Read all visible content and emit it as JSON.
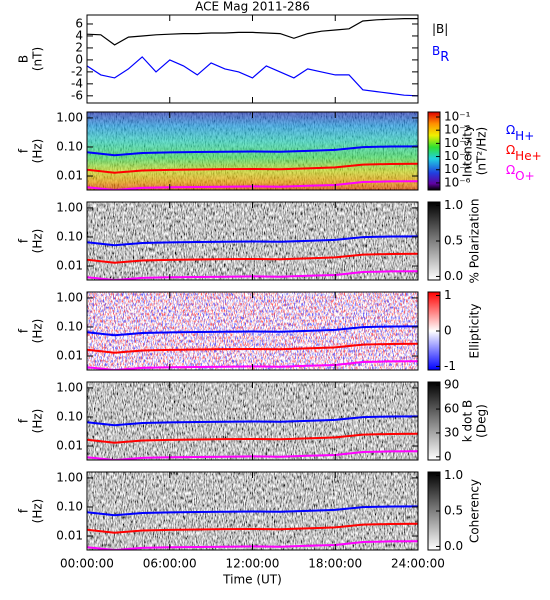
{
  "chart_data": [
    {
      "type": "line",
      "title": "ACE Mag 2011-286",
      "ylabel": [
        "B",
        "(nT)"
      ],
      "x": [
        0,
        1,
        2,
        3,
        4,
        5,
        6,
        7,
        8,
        9,
        10,
        11,
        12,
        13,
        14,
        15,
        16,
        17,
        18,
        19,
        20,
        21,
        22,
        23,
        24
      ],
      "xlim": [
        0,
        24
      ],
      "ylim": [
        -7.2,
        7.5
      ],
      "yticks": [
        -6,
        -4,
        -2,
        0,
        2,
        4,
        6
      ],
      "series": [
        {
          "name": "|B|",
          "color": "#000000",
          "values": [
            4.3,
            4.2,
            2.5,
            3.8,
            4.0,
            4.2,
            4.3,
            4.4,
            4.4,
            4.5,
            4.5,
            4.6,
            4.6,
            4.5,
            4.4,
            3.6,
            4.4,
            4.8,
            5.0,
            5.2,
            6.5,
            6.7,
            6.8,
            6.9,
            6.9
          ]
        },
        {
          "name": "B",
          "sub": "R",
          "color": "#0000ff",
          "values": [
            -1.0,
            -2.5,
            -3.0,
            -1.5,
            0.5,
            -2.0,
            0.0,
            -1.0,
            -2.5,
            -0.5,
            -1.5,
            -2.0,
            -3.0,
            -1.0,
            -2.0,
            -3.0,
            -1.5,
            -2.0,
            -2.5,
            -2.5,
            -5.0,
            -5.3,
            -5.6,
            -5.9,
            -6.0
          ]
        }
      ]
    },
    {
      "type": "spectrogram",
      "ylabel": [
        "f",
        "(Hz)"
      ],
      "log_y": true,
      "x": [
        0,
        2,
        4,
        6,
        8,
        10,
        12,
        14,
        16,
        18,
        20,
        22,
        24
      ],
      "xlim": [
        0,
        24
      ],
      "ylim": [
        0.0033,
        1.6
      ],
      "yticks": [
        {
          "value": 1,
          "label": "1.00"
        },
        {
          "value": 0.1,
          "label": "0.10"
        },
        {
          "value": 0.01,
          "label": "0.01"
        }
      ],
      "colormap": "rainbow",
      "colorbar": {
        "label": [
          "Intensity",
          "(nT²/Hz)"
        ],
        "log": true,
        "lim": [
          2.9e-07,
          0.24
        ],
        "ticks": [
          {
            "value": 0.1,
            "label": "10⁻¹"
          },
          {
            "value": 0.01,
            "label": "10⁻²"
          },
          {
            "value": 0.001,
            "label": "10⁻³"
          },
          {
            "value": 0.0001,
            "label": "10⁻⁴"
          },
          {
            "value": 1e-05,
            "label": "10⁻⁵"
          },
          {
            "value": 1e-06,
            "label": "10⁻⁶"
          }
        ]
      },
      "series": [
        {
          "name": "Ω",
          "sub": "H+",
          "color": "#0000ff",
          "values": [
            0.066,
            0.052,
            0.062,
            0.065,
            0.067,
            0.069,
            0.07,
            0.068,
            0.073,
            0.079,
            0.099,
            0.104,
            0.105
          ]
        },
        {
          "name": "Ω",
          "sub": "He+",
          "color": "#ff0000",
          "values": [
            0.0165,
            0.013,
            0.0155,
            0.0163,
            0.0168,
            0.0173,
            0.0175,
            0.017,
            0.0183,
            0.0198,
            0.0248,
            0.026,
            0.0263
          ]
        },
        {
          "name": "Ω",
          "sub": "O+",
          "color": "#ff00ff",
          "values": [
            0.0041,
            0.0033,
            0.0039,
            0.0041,
            0.0042,
            0.0043,
            0.0044,
            0.0043,
            0.0046,
            0.0049,
            0.0062,
            0.0065,
            0.0066
          ]
        }
      ]
    },
    {
      "type": "spectrogram",
      "ylabel": [
        "f",
        "(Hz)"
      ],
      "log_y": true,
      "x": [
        0,
        2,
        4,
        6,
        8,
        10,
        12,
        14,
        16,
        18,
        20,
        22,
        24
      ],
      "xlim": [
        0,
        24
      ],
      "ylim": [
        0.0033,
        1.6
      ],
      "yticks": [
        {
          "value": 1,
          "label": "1.00"
        },
        {
          "value": 0.1,
          "label": "0.10"
        },
        {
          "value": 0.01,
          "label": "0.01"
        }
      ],
      "colormap": "gray",
      "colorbar": {
        "label": [
          "% Polarization"
        ],
        "lim": [
          -0.05,
          1.05
        ],
        "ticks": [
          {
            "value": 1,
            "label": "1.0"
          },
          {
            "value": 0.5,
            "label": "0.5"
          },
          {
            "value": 0,
            "label": "0.0"
          }
        ]
      },
      "series": [
        {
          "color": "#0000ff",
          "values": [
            0.066,
            0.052,
            0.062,
            0.065,
            0.067,
            0.069,
            0.07,
            0.068,
            0.073,
            0.079,
            0.099,
            0.104,
            0.105
          ]
        },
        {
          "color": "#ff0000",
          "values": [
            0.0165,
            0.013,
            0.0155,
            0.0163,
            0.0168,
            0.0173,
            0.0175,
            0.017,
            0.0183,
            0.0198,
            0.0248,
            0.026,
            0.0263
          ]
        },
        {
          "color": "#ff00ff",
          "values": [
            0.0041,
            0.0033,
            0.0039,
            0.0041,
            0.0042,
            0.0043,
            0.0044,
            0.0043,
            0.0046,
            0.0049,
            0.0062,
            0.0065,
            0.0066
          ]
        }
      ]
    },
    {
      "type": "spectrogram",
      "ylabel": [
        "f",
        "(Hz)"
      ],
      "log_y": true,
      "x": [
        0,
        2,
        4,
        6,
        8,
        10,
        12,
        14,
        16,
        18,
        20,
        22,
        24
      ],
      "xlim": [
        0,
        24
      ],
      "ylim": [
        0.0033,
        1.6
      ],
      "yticks": [
        {
          "value": 1,
          "label": "1.00"
        },
        {
          "value": 0.1,
          "label": "0.10"
        },
        {
          "value": 0.01,
          "label": "0.01"
        }
      ],
      "colormap": "bwr",
      "colorbar": {
        "label": [
          "Ellipticity"
        ],
        "lim": [
          -1.1,
          1.1
        ],
        "ticks": [
          1,
          0,
          -1
        ]
      },
      "series": [
        {
          "color": "#0000ff",
          "values": [
            0.066,
            0.052,
            0.062,
            0.065,
            0.067,
            0.069,
            0.07,
            0.068,
            0.073,
            0.079,
            0.099,
            0.104,
            0.105
          ]
        },
        {
          "color": "#ff0000",
          "values": [
            0.0165,
            0.013,
            0.0155,
            0.0163,
            0.0168,
            0.0173,
            0.0175,
            0.017,
            0.0183,
            0.0198,
            0.0248,
            0.026,
            0.0263
          ]
        },
        {
          "color": "#ff00ff",
          "values": [
            0.0041,
            0.0033,
            0.0039,
            0.0041,
            0.0042,
            0.0043,
            0.0044,
            0.0043,
            0.0046,
            0.0049,
            0.0062,
            0.0065,
            0.0066
          ]
        }
      ]
    },
    {
      "type": "spectrogram",
      "ylabel": [
        "f",
        "(Hz)"
      ],
      "log_y": true,
      "x": [
        0,
        2,
        4,
        6,
        8,
        10,
        12,
        14,
        16,
        18,
        20,
        22,
        24
      ],
      "xlim": [
        0,
        24
      ],
      "ylim": [
        0.0033,
        1.6
      ],
      "yticks": [
        {
          "value": 1,
          "label": "1.00"
        },
        {
          "value": 0.1,
          "label": "0.10"
        },
        {
          "value": 0.01,
          "label": "0.01"
        }
      ],
      "colormap": "gray",
      "colorbar": {
        "label": [
          "k dot B",
          "(Deg)"
        ],
        "lim": [
          -4,
          94
        ],
        "ticks": [
          90,
          60,
          30,
          0
        ]
      },
      "series": [
        {
          "color": "#0000ff",
          "values": [
            0.066,
            0.052,
            0.062,
            0.065,
            0.067,
            0.069,
            0.07,
            0.068,
            0.073,
            0.079,
            0.099,
            0.104,
            0.105
          ]
        },
        {
          "color": "#ff0000",
          "values": [
            0.0165,
            0.013,
            0.0155,
            0.0163,
            0.0168,
            0.0173,
            0.0175,
            0.017,
            0.0183,
            0.0198,
            0.0248,
            0.026,
            0.0263
          ]
        },
        {
          "color": "#ff00ff",
          "values": [
            0.0041,
            0.0033,
            0.0039,
            0.0041,
            0.0042,
            0.0043,
            0.0044,
            0.0043,
            0.0046,
            0.0049,
            0.0062,
            0.0065,
            0.0066
          ]
        }
      ]
    },
    {
      "type": "spectrogram",
      "ylabel": [
        "f",
        "(Hz)"
      ],
      "log_y": true,
      "x": [
        0,
        2,
        4,
        6,
        8,
        10,
        12,
        14,
        16,
        18,
        20,
        22,
        24
      ],
      "xlim": [
        0,
        24
      ],
      "ylim": [
        0.0033,
        1.6
      ],
      "yticks": [
        {
          "value": 1,
          "label": "1.00"
        },
        {
          "value": 0.1,
          "label": "0.10"
        },
        {
          "value": 0.01,
          "label": "0.01"
        }
      ],
      "colormap": "gray",
      "colorbar": {
        "label": [
          "Coherency"
        ],
        "lim": [
          -0.05,
          1.05
        ],
        "ticks": [
          {
            "value": 1,
            "label": "1.0"
          },
          {
            "value": 0.5,
            "label": "0.5"
          },
          {
            "value": 0,
            "label": "0.0"
          }
        ]
      },
      "xticks": [
        {
          "value": 0,
          "label": "00:00:00"
        },
        {
          "value": 6,
          "label": "06:00:00"
        },
        {
          "value": 12,
          "label": "12:00:00"
        },
        {
          "value": 18,
          "label": "18:00:00"
        },
        {
          "value": 24,
          "label": "24:00:00"
        }
      ],
      "xlabel": "Time (UT)",
      "series": [
        {
          "color": "#0000ff",
          "values": [
            0.066,
            0.052,
            0.062,
            0.065,
            0.067,
            0.069,
            0.07,
            0.068,
            0.073,
            0.079,
            0.099,
            0.104,
            0.105
          ]
        },
        {
          "color": "#ff0000",
          "values": [
            0.0165,
            0.013,
            0.0155,
            0.0163,
            0.0168,
            0.0173,
            0.0175,
            0.017,
            0.0183,
            0.0198,
            0.0248,
            0.026,
            0.0263
          ]
        },
        {
          "color": "#ff00ff",
          "values": [
            0.0041,
            0.0033,
            0.0039,
            0.0041,
            0.0042,
            0.0043,
            0.0044,
            0.0043,
            0.0046,
            0.0049,
            0.0062,
            0.0065,
            0.0066
          ]
        }
      ]
    }
  ]
}
